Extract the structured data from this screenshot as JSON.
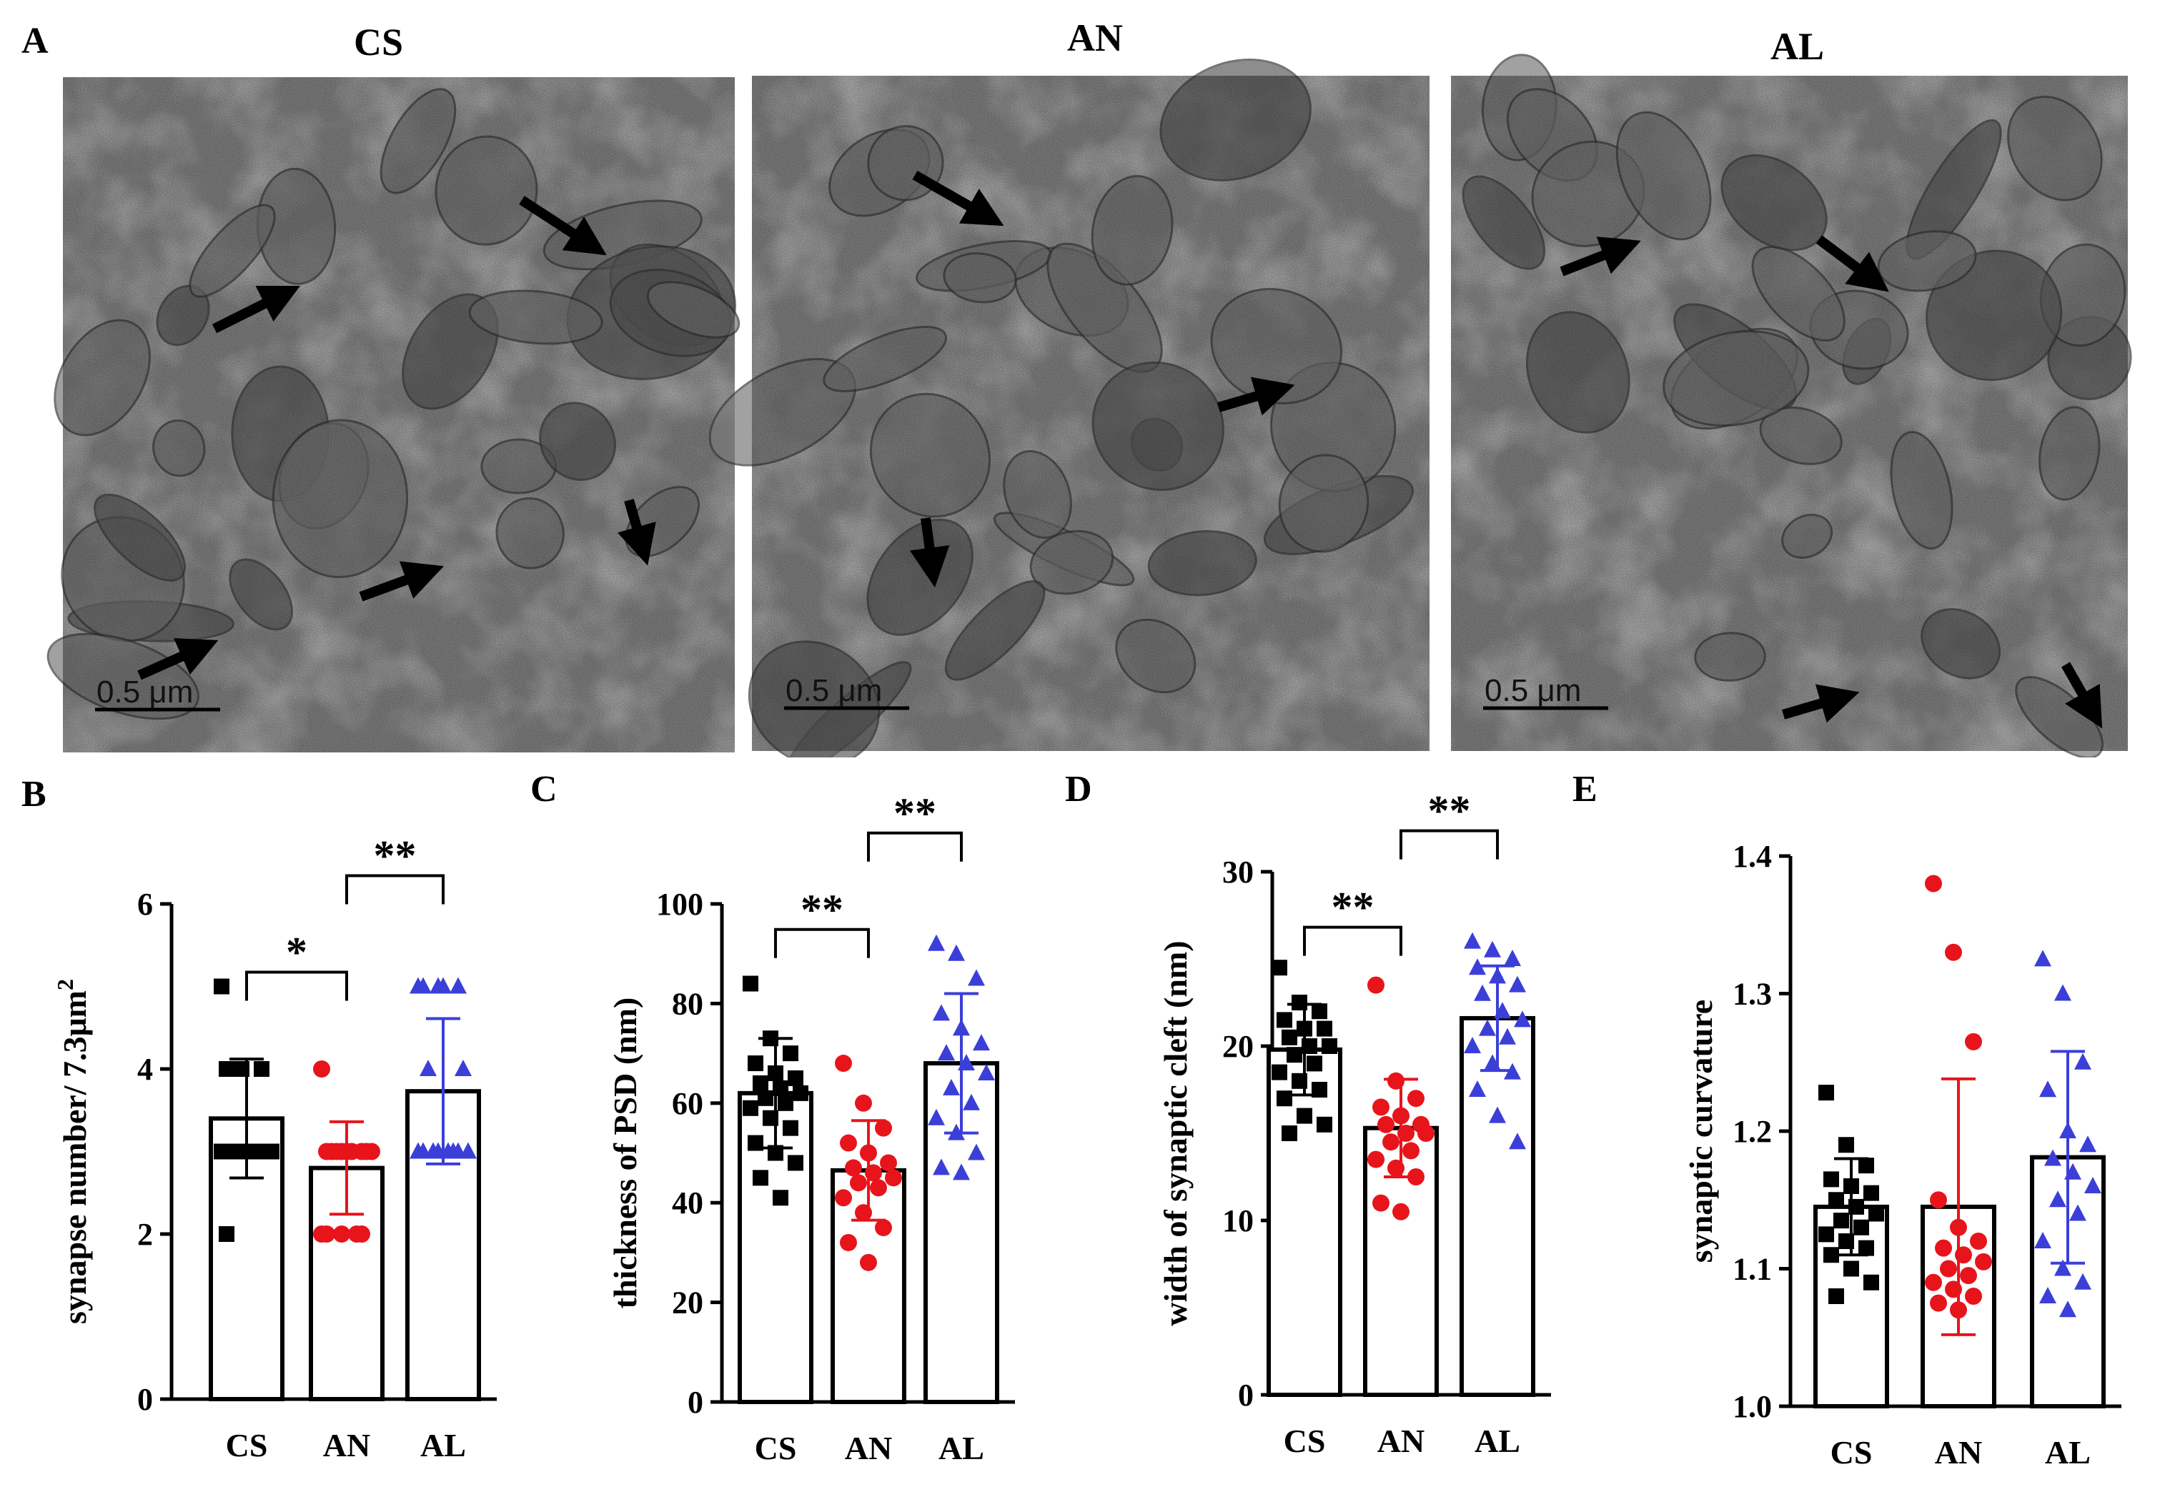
{
  "panel_labels": {
    "A": "A",
    "B": "B",
    "C": "C",
    "D": "D",
    "E": "E"
  },
  "micrographs": [
    {
      "title": "CS",
      "scale_bar": "0.5 μm"
    },
    {
      "title": "AN",
      "scale_bar": "0.5 μm"
    },
    {
      "title": "AL",
      "scale_bar": "0.5 μm"
    }
  ],
  "colors": {
    "CS": "#000000",
    "AN": "#e8141b",
    "AL": "#3b3fd8",
    "em_base": "#8c8c8c"
  },
  "chart_data": [
    {
      "type": "bar",
      "panel": "B",
      "ylabel": "synapse number/ 7.3μm",
      "ylabel_sup": "2",
      "categories": [
        "CS",
        "AN",
        "AL"
      ],
      "ylim": [
        0,
        6
      ],
      "yticks": [
        0,
        2,
        4,
        6
      ],
      "means": [
        3.4,
        2.8,
        3.73
      ],
      "sd": [
        0.72,
        0.56,
        0.88
      ],
      "points": [
        [
          5,
          4,
          4,
          4,
          3,
          3,
          3,
          3,
          3,
          3,
          3,
          3,
          3,
          3,
          2
        ],
        [
          4,
          3,
          3,
          3,
          3,
          3,
          3,
          3,
          3,
          3,
          2,
          2,
          2,
          2,
          2
        ],
        [
          5,
          5,
          5,
          5,
          5,
          4,
          4,
          3,
          3,
          3,
          3,
          3,
          3,
          3,
          3
        ]
      ],
      "significance": [
        {
          "from": 0,
          "to": 1,
          "label": "*"
        },
        {
          "from": 1,
          "to": 2,
          "label": "**"
        }
      ]
    },
    {
      "type": "bar",
      "panel": "C",
      "ylabel": "thickness of PSD (nm)",
      "categories": [
        "CS",
        "AN",
        "AL"
      ],
      "ylim": [
        0,
        100
      ],
      "yticks": [
        0,
        20,
        40,
        60,
        80,
        100
      ],
      "means": [
        62,
        46.5,
        68
      ],
      "sd": [
        11,
        10,
        14
      ],
      "points": [
        [
          84,
          73,
          70,
          68,
          66,
          65,
          64,
          63,
          62,
          61,
          60,
          59,
          57,
          55,
          52,
          50,
          48,
          45,
          41
        ],
        [
          68,
          60,
          55,
          52,
          50,
          48,
          47,
          46,
          45,
          44,
          43,
          41,
          38,
          35,
          32,
          28
        ],
        [
          92,
          90,
          85,
          78,
          75,
          72,
          70,
          68,
          66,
          63,
          60,
          57,
          54,
          50,
          47,
          46
        ]
      ],
      "significance": [
        {
          "from": 0,
          "to": 1,
          "label": "**"
        },
        {
          "from": 1,
          "to": 2,
          "label": "**"
        }
      ]
    },
    {
      "type": "bar",
      "panel": "D",
      "ylabel": "width of synaptic cleft (nm)",
      "categories": [
        "CS",
        "AN",
        "AL"
      ],
      "ylim": [
        0,
        30
      ],
      "yticks": [
        0,
        10,
        20,
        30
      ],
      "means": [
        19.8,
        15.3,
        21.6
      ],
      "sd": [
        2.6,
        2.8,
        3.0
      ],
      "points": [
        [
          24.5,
          22.5,
          22,
          21.5,
          21,
          21,
          20.5,
          20,
          20,
          19.5,
          19,
          18.5,
          18,
          17.5,
          17,
          16,
          15.5,
          15
        ],
        [
          23.5,
          18,
          17,
          16.5,
          16,
          15.5,
          15.5,
          15,
          15,
          14.5,
          14,
          13.5,
          13,
          12.5,
          11,
          10.5
        ],
        [
          26,
          25.5,
          25,
          24.5,
          24,
          23.5,
          23,
          22,
          21.5,
          21,
          20.5,
          20,
          19,
          18.5,
          17.5,
          16,
          14.5
        ]
      ],
      "significance": [
        {
          "from": 0,
          "to": 1,
          "label": "**"
        },
        {
          "from": 1,
          "to": 2,
          "label": "**"
        }
      ]
    },
    {
      "type": "bar",
      "panel": "E",
      "ylabel": "synaptic curvature",
      "categories": [
        "CS",
        "AN",
        "AL"
      ],
      "ylim": [
        1.0,
        1.4
      ],
      "yticks": [
        "1.0",
        "1.1",
        "1.2",
        "1.3",
        "1.4"
      ],
      "means": [
        1.145,
        1.145,
        1.181
      ],
      "sd": [
        0.035,
        0.093,
        0.077
      ],
      "points": [
        [
          1.228,
          1.19,
          1.175,
          1.165,
          1.16,
          1.155,
          1.15,
          1.145,
          1.14,
          1.135,
          1.13,
          1.125,
          1.12,
          1.115,
          1.11,
          1.1,
          1.09,
          1.08
        ],
        [
          1.38,
          1.33,
          1.265,
          1.15,
          1.13,
          1.12,
          1.115,
          1.11,
          1.105,
          1.1,
          1.095,
          1.09,
          1.085,
          1.08,
          1.075,
          1.07
        ],
        [
          1.325,
          1.3,
          1.25,
          1.23,
          1.2,
          1.19,
          1.18,
          1.17,
          1.16,
          1.15,
          1.14,
          1.12,
          1.1,
          1.09,
          1.08,
          1.07
        ]
      ],
      "significance": []
    }
  ]
}
